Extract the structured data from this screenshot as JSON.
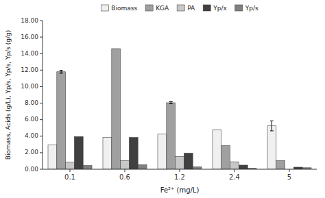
{
  "chart_data": {
    "type": "bar",
    "categories": [
      "0.1",
      "0.6",
      "1.2",
      "2.4",
      "5"
    ],
    "series": [
      {
        "name": "Biomass",
        "color": "#f0f0f0",
        "values": [
          2.95,
          3.85,
          4.25,
          4.75,
          5.25
        ],
        "errors": [
          0.0,
          0.0,
          0.0,
          0.0,
          0.6
        ]
      },
      {
        "name": "KGA",
        "color": "#a0a0a0",
        "values": [
          11.8,
          14.6,
          8.05,
          2.85,
          1.05
        ],
        "errors": [
          0.18,
          0.0,
          0.12,
          0.0,
          0.0
        ]
      },
      {
        "name": "PA",
        "color": "#c8c8c8",
        "values": [
          0.85,
          1.05,
          1.55,
          0.9,
          0.0
        ],
        "errors": [
          0.0,
          0.0,
          0.0,
          0.0,
          0.0
        ]
      },
      {
        "name": "Yp/x",
        "color": "#404040",
        "values": [
          3.95,
          3.85,
          1.95,
          0.5,
          0.25
        ],
        "errors": [
          0.0,
          0.0,
          0.0,
          0.0,
          0.0
        ]
      },
      {
        "name": "Yp/s",
        "color": "#808080",
        "values": [
          0.45,
          0.55,
          0.28,
          0.12,
          0.18
        ],
        "errors": [
          0.0,
          0.0,
          0.0,
          0.0,
          0.0
        ]
      }
    ],
    "x_label": "Fe²⁺ (mg/L)",
    "y_label": "Biomass, Acids (g/L), Yp/s, Yp/s, Yp/s (g/g)",
    "ylim": [
      0.0,
      18.0
    ],
    "yticks": [
      {
        "value": 0.0,
        "label": "0.00"
      },
      {
        "value": 2.0,
        "label": "2.00"
      },
      {
        "value": 4.0,
        "label": "4.00"
      },
      {
        "value": 6.0,
        "label": "6.00"
      },
      {
        "value": 8.0,
        "label": "8.00"
      },
      {
        "value": 10.0,
        "label": "10.00"
      },
      {
        "value": 12.0,
        "label": "12.00"
      },
      {
        "value": 14.0,
        "label": "14.00"
      },
      {
        "value": 16.0,
        "label": "16.00"
      },
      {
        "value": 18.0,
        "label": "18.00"
      }
    ],
    "grid": false,
    "legend": "top"
  }
}
